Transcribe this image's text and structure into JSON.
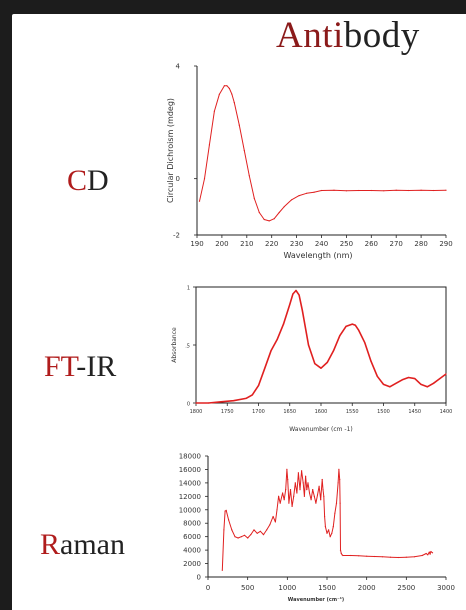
{
  "header": {
    "title_accent": "Anti",
    "title_rest": "body",
    "title_color": "#8b1a1a"
  },
  "rows": [
    {
      "label_accent": "C",
      "label_rest": "D"
    },
    {
      "label_accent": "FT",
      "label_rest": "-IR"
    },
    {
      "label_accent": "R",
      "label_rest": "aman"
    }
  ],
  "colors": {
    "background": "#1c1c1c",
    "panel": "#ffffff",
    "line": "#e02020",
    "accent": "#8b1a1a"
  },
  "chart_data": [
    {
      "type": "line",
      "xlabel": "Wavelength (nm)",
      "ylabel": "Circular Dichroism (mdeg)",
      "xlim": [
        190,
        290
      ],
      "ylim": [
        -2,
        4
      ],
      "xticks": [
        "190",
        "200",
        "210",
        "220",
        "230",
        "240",
        "250",
        "260",
        "270",
        "280",
        "290"
      ],
      "yticks": [
        {
          "v": -2,
          "t": "-2"
        },
        {
          "v": 0,
          "t": "0"
        },
        {
          "v": 4,
          "t": "4"
        }
      ],
      "grid": false,
      "x": [
        191,
        193,
        195,
        197,
        199,
        201,
        202,
        203,
        204,
        205,
        207,
        209,
        211,
        213,
        215,
        217,
        219,
        221,
        223,
        225,
        228,
        231,
        234,
        237,
        240,
        245,
        250,
        255,
        260,
        265,
        270,
        275,
        280,
        285,
        290
      ],
      "y": [
        -0.8,
        0.0,
        1.2,
        2.4,
        3.0,
        3.3,
        3.3,
        3.2,
        3.0,
        2.7,
        1.9,
        1.0,
        0.1,
        -0.7,
        -1.2,
        -1.45,
        -1.5,
        -1.42,
        -1.2,
        -1.0,
        -0.75,
        -0.6,
        -0.52,
        -0.48,
        -0.42,
        -0.41,
        -0.43,
        -0.42,
        -0.42,
        -0.43,
        -0.41,
        -0.42,
        -0.41,
        -0.42,
        -0.41
      ]
    },
    {
      "type": "line",
      "xlabel": "Wavenumber (cm -1)",
      "ylabel": "Absorbance",
      "xlim": [
        1800,
        1400
      ],
      "ylim": [
        0,
        1
      ],
      "xticks": [
        "1800",
        "1750",
        "1700",
        "1650",
        "1600",
        "1550",
        "1500",
        "1450",
        "1400"
      ],
      "yticks": [
        {
          "v": 0,
          "t": "0"
        },
        {
          "v": 0.5,
          "t": ".5"
        },
        {
          "v": 1,
          "t": "1"
        }
      ],
      "grid": false,
      "x": [
        1800,
        1780,
        1760,
        1740,
        1720,
        1710,
        1700,
        1690,
        1680,
        1670,
        1660,
        1650,
        1645,
        1640,
        1635,
        1630,
        1620,
        1610,
        1600,
        1590,
        1580,
        1570,
        1560,
        1550,
        1545,
        1540,
        1530,
        1520,
        1510,
        1500,
        1490,
        1480,
        1470,
        1460,
        1450,
        1440,
        1430,
        1420,
        1410,
        1400
      ],
      "y": [
        0.0,
        0.0,
        0.01,
        0.02,
        0.04,
        0.07,
        0.15,
        0.3,
        0.45,
        0.55,
        0.68,
        0.85,
        0.94,
        0.97,
        0.93,
        0.8,
        0.5,
        0.34,
        0.3,
        0.35,
        0.45,
        0.58,
        0.66,
        0.68,
        0.67,
        0.63,
        0.52,
        0.36,
        0.23,
        0.16,
        0.14,
        0.17,
        0.2,
        0.22,
        0.21,
        0.16,
        0.14,
        0.17,
        0.21,
        0.25
      ]
    },
    {
      "type": "line",
      "xlabel": "Wavenumber (cm⁻¹)",
      "ylabel": "",
      "xlim": [
        0,
        3000
      ],
      "ylim": [
        0,
        18000
      ],
      "xticks": [
        "0",
        "500",
        "1000",
        "1500",
        "2000",
        "2500",
        "3000"
      ],
      "yticks": [
        {
          "v": 0,
          "t": "0"
        },
        {
          "v": 2000,
          "t": "2000"
        },
        {
          "v": 4000,
          "t": "4000"
        },
        {
          "v": 6000,
          "t": "6000"
        },
        {
          "v": 8000,
          "t": "8000"
        },
        {
          "v": 10000,
          "t": "10000"
        },
        {
          "v": 12000,
          "t": "12000"
        },
        {
          "v": 14000,
          "t": "14000"
        },
        {
          "v": 16000,
          "t": "16000"
        },
        {
          "v": 18000,
          "t": "18000"
        }
      ],
      "grid": false,
      "x": [
        180,
        200,
        215,
        230,
        260,
        300,
        340,
        380,
        420,
        460,
        500,
        540,
        580,
        620,
        660,
        700,
        740,
        780,
        820,
        850,
        870,
        890,
        910,
        940,
        960,
        980,
        995,
        1005,
        1020,
        1040,
        1060,
        1080,
        1100,
        1120,
        1140,
        1160,
        1180,
        1200,
        1215,
        1230,
        1245,
        1260,
        1280,
        1300,
        1320,
        1340,
        1360,
        1380,
        1400,
        1420,
        1440,
        1450,
        1460,
        1470,
        1480,
        1500,
        1520,
        1540,
        1560,
        1580,
        1600,
        1620,
        1640,
        1650,
        1660,
        1665,
        1670,
        1680,
        1690,
        1700,
        1800,
        1900,
        2000,
        2100,
        2200,
        2300,
        2400,
        2500,
        2600,
        2700,
        2750,
        2770,
        2790,
        2800,
        2810,
        2830
      ],
      "y": [
        1000,
        7000,
        9800,
        9900,
        8500,
        7000,
        6000,
        5800,
        6000,
        6200,
        5800,
        6300,
        7000,
        6500,
        6800,
        6300,
        7000,
        7800,
        9000,
        8200,
        10000,
        12000,
        11000,
        12500,
        11500,
        13000,
        16000,
        14500,
        11000,
        13000,
        10500,
        12000,
        14000,
        12500,
        15500,
        13000,
        15800,
        14000,
        12000,
        15000,
        13000,
        14000,
        12500,
        11500,
        13000,
        12000,
        11000,
        12200,
        13500,
        11500,
        14500,
        13000,
        12000,
        9000,
        7500,
        6500,
        7000,
        6000,
        6500,
        7500,
        9500,
        11000,
        14000,
        16000,
        14500,
        11000,
        4000,
        3500,
        3300,
        3200,
        3200,
        3150,
        3100,
        3050,
        3000,
        2950,
        2900,
        2950,
        3000,
        3200,
        3500,
        3300,
        3700,
        3400,
        3800,
        3600
      ]
    }
  ]
}
